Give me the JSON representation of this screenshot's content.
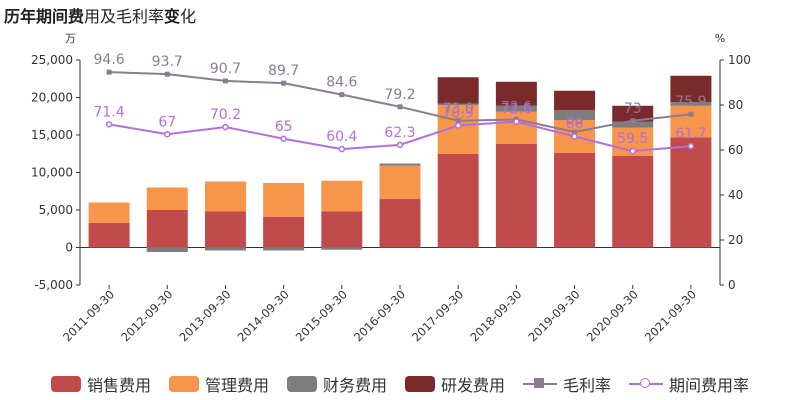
{
  "title": {
    "part1": "历年期",
    "part2": "间费",
    "part3": "用及毛利率",
    "part4": "变",
    "part5": "化"
  },
  "chart_data": {
    "type": "bar",
    "stacked": true,
    "title": "历年期间费用及毛利率变化",
    "left_axis": {
      "unit": "万",
      "ylim": [
        -5000,
        25000
      ],
      "ticks": [
        -5000,
        0,
        5000,
        10000,
        15000,
        20000,
        25000
      ],
      "tick_labels": [
        "-5,000",
        "0",
        "5,000",
        "10,000",
        "15,000",
        "20,000",
        "25,000"
      ]
    },
    "right_axis": {
      "unit": "%",
      "ylim": [
        0,
        100
      ],
      "ticks": [
        0,
        20,
        40,
        60,
        80,
        100
      ],
      "tick_labels": [
        "0",
        "20",
        "40",
        "60",
        "80",
        "100"
      ]
    },
    "categories": [
      "2011-09-30",
      "2012-09-30",
      "2013-09-30",
      "2014-09-30",
      "2015-09-30",
      "2016-09-30",
      "2017-09-30",
      "2018-09-30",
      "2019-09-30",
      "2020-09-30",
      "2021-09-30"
    ],
    "series": [
      {
        "name": "销售费用",
        "color": "#c14b4b",
        "values": [
          3300,
          5000,
          4800,
          4100,
          4800,
          6500,
          12500,
          13800,
          12600,
          12200,
          14700
        ]
      },
      {
        "name": "管理费用",
        "color": "#f7964a",
        "values": [
          2700,
          3000,
          4000,
          4500,
          4100,
          4400,
          6500,
          4300,
          4400,
          3800,
          4200
        ]
      },
      {
        "name": "财务费用",
        "color": "#7d7d7d",
        "values": [
          0,
          -600,
          -400,
          -400,
          -300,
          300,
          200,
          800,
          1300,
          800,
          500
        ]
      },
      {
        "name": "研发费用",
        "color": "#7b2a2c",
        "values": [
          0,
          0,
          0,
          0,
          0,
          0,
          3500,
          3200,
          2600,
          2100,
          3500
        ]
      }
    ],
    "lines": [
      {
        "name": "毛利率",
        "color": "#8c7b91",
        "marker": "square",
        "axis": "right",
        "values": [
          94.6,
          93.7,
          90.7,
          89.7,
          84.6,
          79.2,
          73.0,
          73.6,
          68.0,
          73.0,
          75.9
        ],
        "labels": [
          "94.6",
          "93.7",
          "90.7",
          "89.7",
          "84.6",
          "79.2",
          "73.0",
          "73.6",
          "68",
          "73",
          "75.9"
        ]
      },
      {
        "name": "期间费用率",
        "color": "#b26ee0",
        "marker": "circle",
        "axis": "right",
        "values": [
          71.4,
          67.0,
          70.2,
          65.0,
          60.4,
          62.3,
          70.9,
          72.6,
          66.0,
          59.5,
          61.7
        ],
        "labels": [
          "71.4",
          "67",
          "70.2",
          "65",
          "60.4",
          "62.3",
          "70.9",
          "72.6",
          "66",
          "59.5",
          "61.7"
        ]
      }
    ],
    "legend": [
      "销售费用",
      "管理费用",
      "财务费用",
      "研发费用",
      "毛利率",
      "期间费用率"
    ],
    "legend_position": "bottom",
    "grid": false
  }
}
